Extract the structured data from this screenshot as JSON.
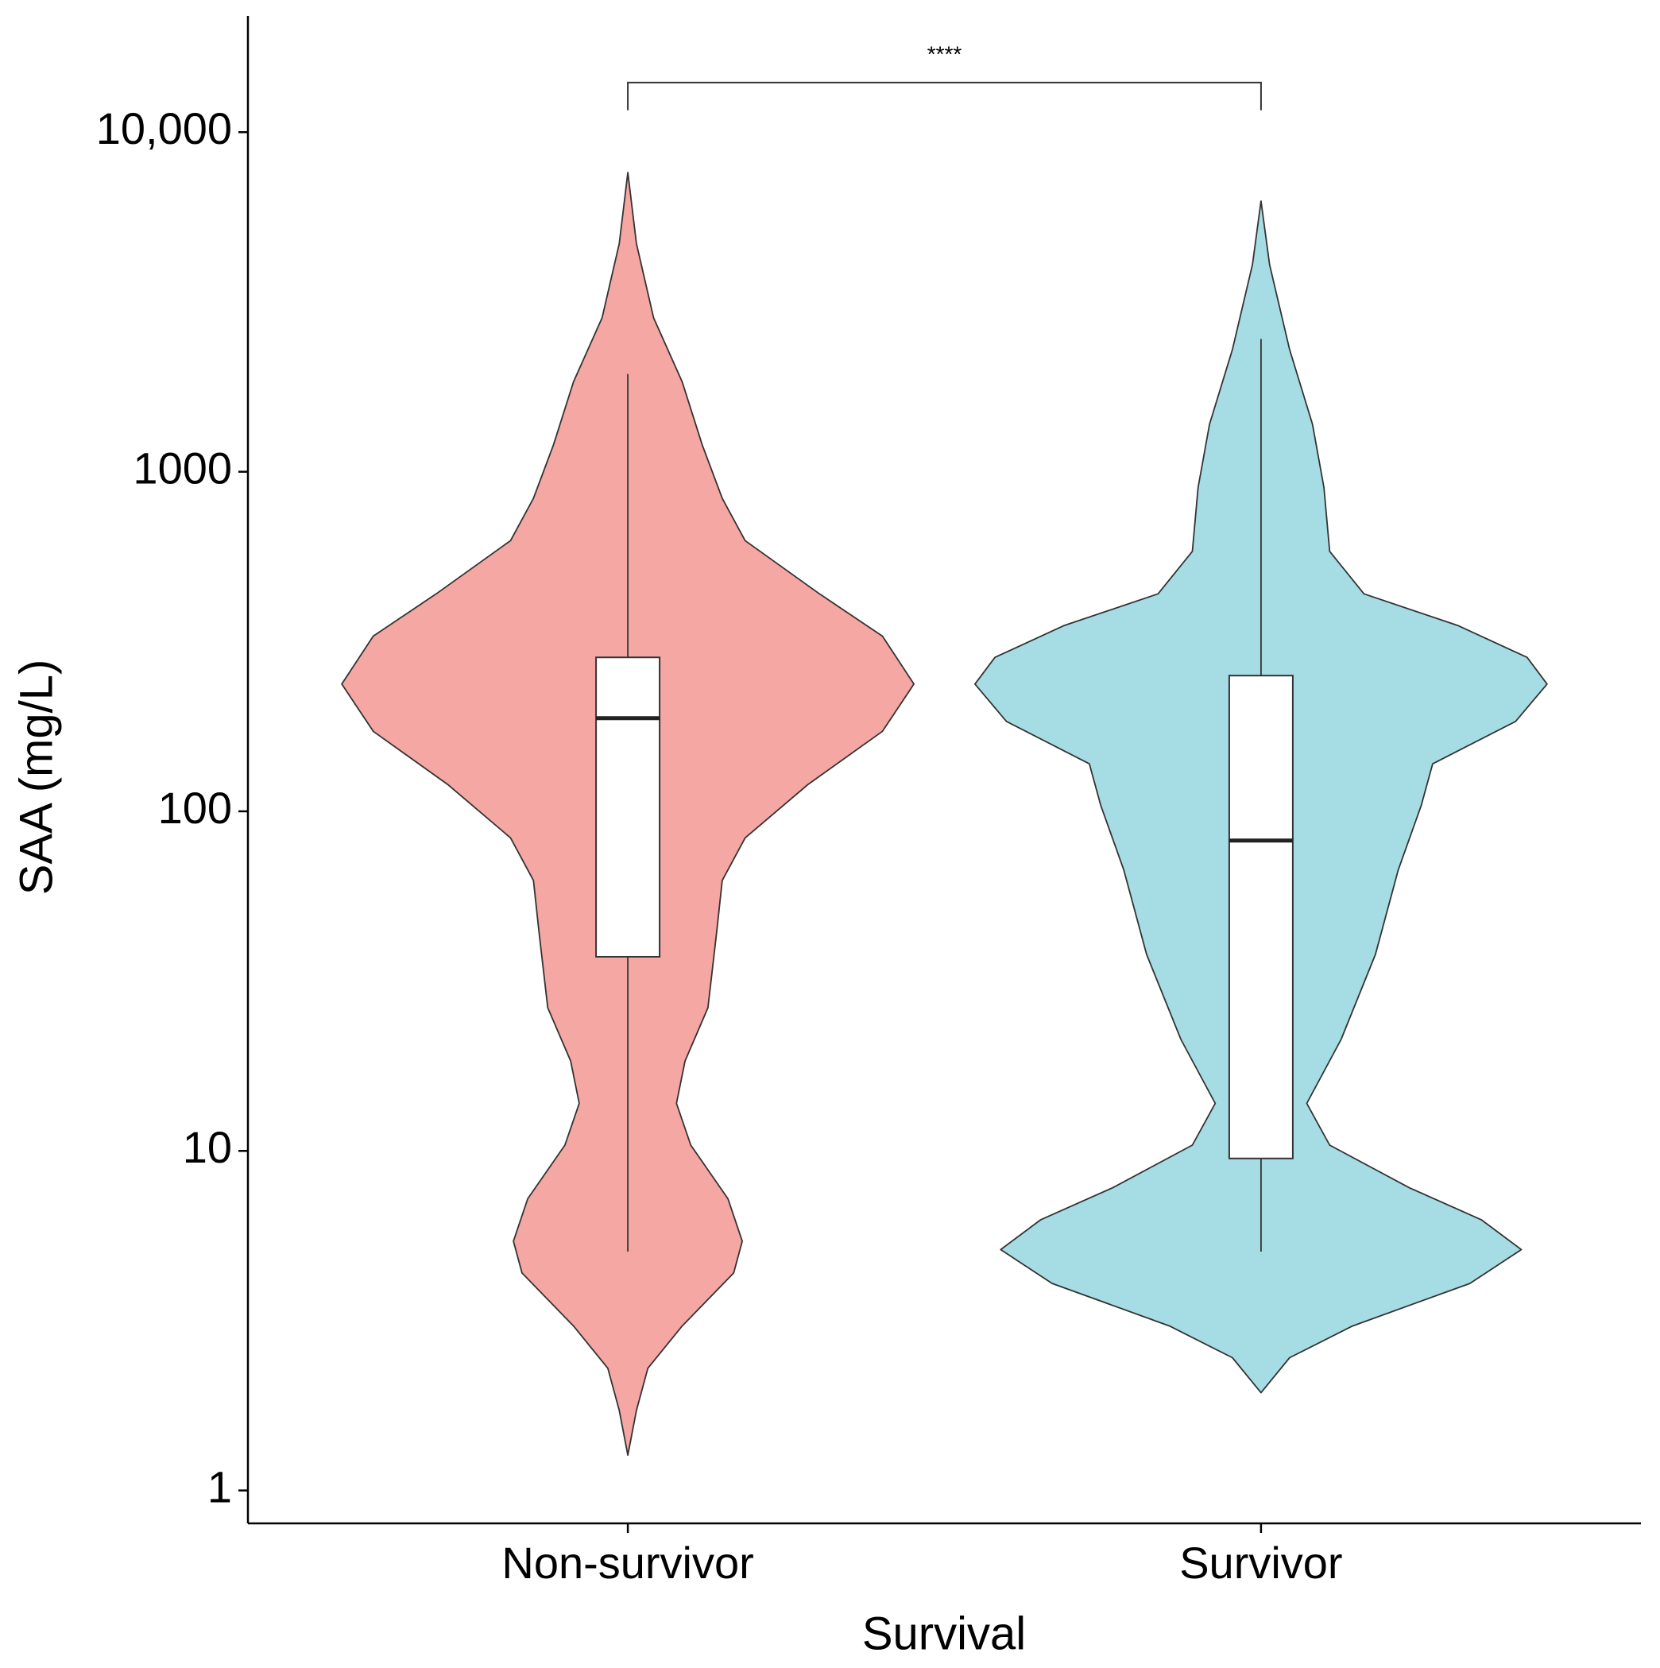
{
  "chart_data": {
    "type": "violin",
    "x_label": "Survival",
    "y_label": "SAA (mg/L)",
    "categories": [
      "Non-survivor",
      "Survivor"
    ],
    "groups": [
      {
        "color": "#f4a7a3",
        "violin_y": [
          7610,
          4700,
          2840,
          1840,
          1200,
          835,
          627,
          437,
          328,
          237,
          172,
          120,
          83.5,
          62.6,
          43.7,
          26.4,
          18.4,
          13.8,
          10.4,
          7.23,
          5.42,
          4.37,
          3.05,
          2.29,
          1.72,
          1.27
        ],
        "violin_width": [
          0,
          0.03,
          0.09,
          0.19,
          0.26,
          0.33,
          0.41,
          0.67,
          0.89,
          1,
          0.89,
          0.63,
          0.41,
          0.33,
          0.31,
          0.28,
          0.2,
          0.17,
          0.22,
          0.35,
          0.4,
          0.37,
          0.19,
          0.07,
          0.03,
          0
        ],
        "whisker_low": 5.05,
        "q1": 37.3,
        "median": 188,
        "q3": 284,
        "whisker_high": 1940
      },
      {
        "color": "#a6dde5",
        "violin_y": [
          6270,
          4070,
          2290,
          1380,
          898,
          583,
          437,
          352,
          284,
          237,
          184,
          138,
          104,
          67.3,
          37.9,
          21.3,
          13.8,
          10.4,
          7.78,
          6.27,
          5.12,
          4.07,
          3.05,
          2.46,
          1.94
        ],
        "violin_width": [
          0,
          0.03,
          0.1,
          0.18,
          0.22,
          0.24,
          0.36,
          0.69,
          0.93,
          1,
          0.89,
          0.6,
          0.56,
          0.48,
          0.4,
          0.28,
          0.16,
          0.24,
          0.52,
          0.77,
          0.91,
          0.73,
          0.32,
          0.1,
          0
        ],
        "whisker_low": 5.05,
        "q1": 9.5,
        "median": 82,
        "q3": 251,
        "whisker_high": 2460
      }
    ],
    "log_scale": true,
    "ylim": [
      0.8,
      22000
    ],
    "yticks": [
      1,
      10,
      100,
      1000,
      {
        "value": 10000,
        "label": "10,000"
      }
    ],
    "annotation": {
      "text": "****",
      "y": 14000,
      "y_end": 11600
    }
  }
}
